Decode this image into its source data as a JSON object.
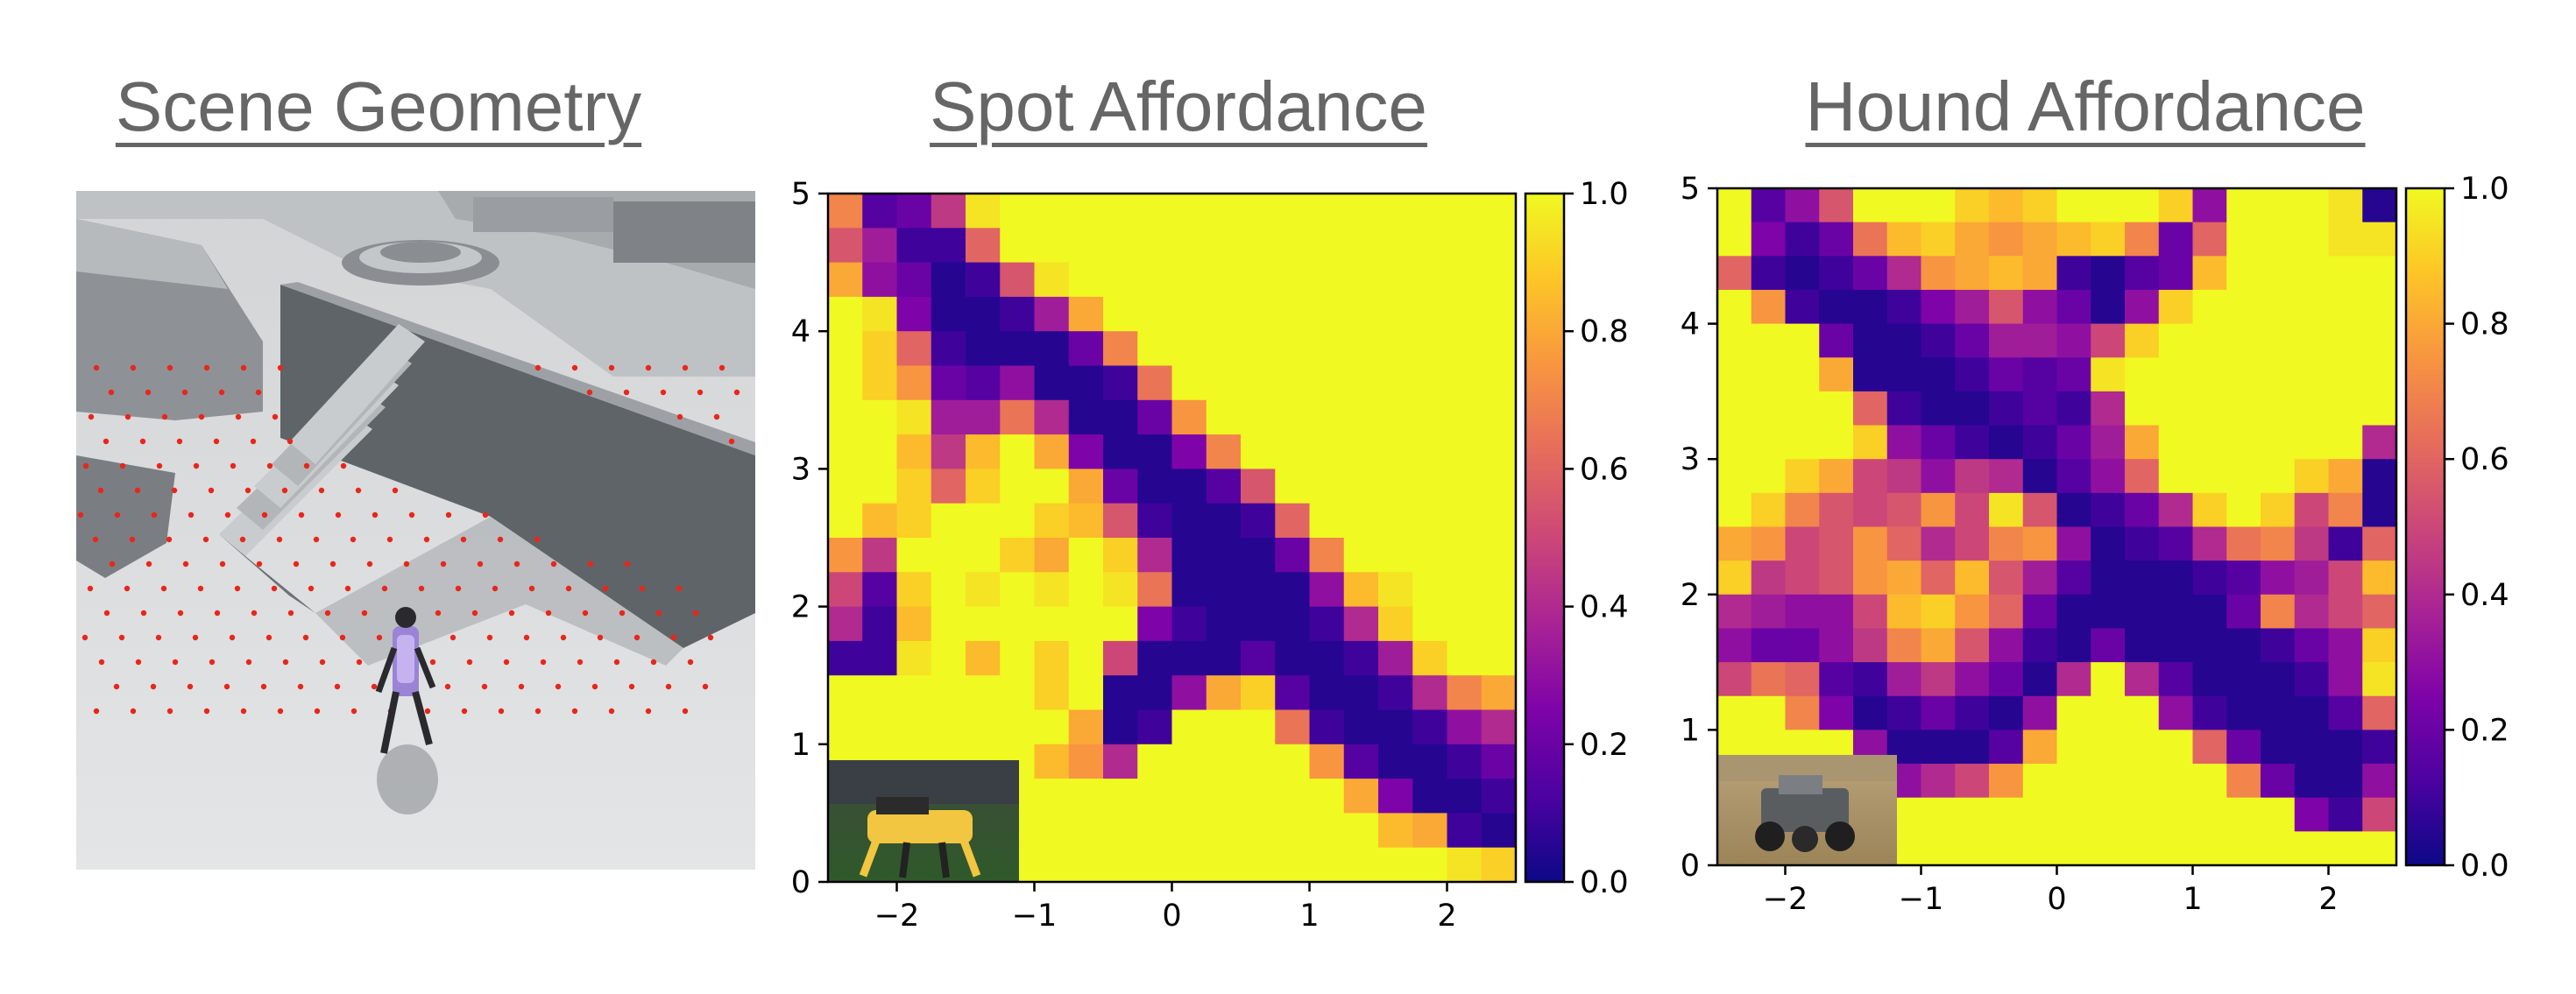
{
  "titles": [
    "Scene Geometry",
    "Spot Affordance",
    "Hound Affordance"
  ],
  "scene": {
    "picture": "3D terrain with stairs, walls, ramps and red sample points; quadruped robot at lower center",
    "robot_icon": "quadruped-robot-icon"
  },
  "colors": {
    "plasma_0": "#0d0887",
    "plasma_25": "#7e03a8",
    "plasma_50": "#cc4778",
    "plasma_75": "#f89540",
    "plasma_100": "#f0f921",
    "title": "#666666",
    "sample_point": "#e8261b"
  },
  "chart_data": [
    {
      "type": "heatmap",
      "title": "Spot Affordance",
      "xlim": [
        -2.5,
        2.5
      ],
      "ylim": [
        0,
        5
      ],
      "xticks": [
        -2,
        -1,
        0,
        1,
        2
      ],
      "yticks": [
        0,
        1,
        2,
        3,
        4,
        5
      ],
      "xtick_labels": [
        "−2",
        "−1",
        "0",
        "1",
        "2"
      ],
      "ytick_labels": [
        "0",
        "1",
        "2",
        "3",
        "4",
        "5"
      ],
      "colorbar": {
        "range": [
          0,
          1
        ],
        "ticks": [
          0,
          0.2,
          0.4,
          0.6,
          0.8,
          1
        ],
        "tick_labels": [
          "0.0",
          "0.2",
          "0.4",
          "0.6",
          "0.8",
          "1.0"
        ],
        "cmap": "plasma"
      },
      "grid": false,
      "inset": {
        "placement": "bottom-left",
        "content": "Spot robot photo"
      },
      "grid_size": [
        20,
        20
      ],
      "values_top_row_first": [
        [
          0.7,
          0.15,
          0.2,
          0.45,
          0.95,
          1,
          1,
          1,
          1,
          1,
          1,
          1,
          1,
          1,
          1,
          1,
          1,
          1,
          1,
          1
        ],
        [
          0.55,
          0.35,
          0.1,
          0.1,
          0.6,
          1,
          1,
          1,
          1,
          1,
          1,
          1,
          1,
          1,
          1,
          1,
          1,
          1,
          1,
          1
        ],
        [
          0.8,
          0.3,
          0.2,
          0.05,
          0.1,
          0.55,
          0.95,
          1,
          1,
          1,
          1,
          1,
          1,
          1,
          1,
          1,
          1,
          1,
          1,
          1
        ],
        [
          1,
          0.95,
          0.25,
          0.05,
          0.05,
          0.1,
          0.35,
          0.8,
          1,
          1,
          1,
          1,
          1,
          1,
          1,
          1,
          1,
          1,
          1,
          1
        ],
        [
          1,
          0.9,
          0.6,
          0.1,
          0.05,
          0.05,
          0.05,
          0.2,
          0.7,
          1,
          1,
          1,
          1,
          1,
          1,
          1,
          1,
          1,
          1,
          1
        ],
        [
          1,
          0.9,
          0.75,
          0.2,
          0.15,
          0.3,
          0.05,
          0.05,
          0.1,
          0.65,
          1,
          1,
          1,
          1,
          1,
          1,
          1,
          1,
          1,
          1
        ],
        [
          1,
          1,
          0.95,
          0.35,
          0.35,
          0.65,
          0.4,
          0.05,
          0.05,
          0.2,
          0.75,
          1,
          1,
          1,
          1,
          1,
          1,
          1,
          1,
          1
        ],
        [
          1,
          1,
          0.85,
          0.45,
          0.85,
          1,
          0.8,
          0.25,
          0.05,
          0.05,
          0.25,
          0.7,
          1,
          1,
          1,
          1,
          1,
          1,
          1,
          1
        ],
        [
          1,
          1,
          0.9,
          0.6,
          0.9,
          1,
          1,
          0.8,
          0.2,
          0.05,
          0.05,
          0.15,
          0.55,
          1,
          1,
          1,
          1,
          1,
          1,
          1
        ],
        [
          1,
          0.85,
          0.9,
          1,
          1,
          1,
          0.9,
          0.85,
          0.55,
          0.1,
          0.05,
          0.05,
          0.1,
          0.6,
          1,
          1,
          1,
          1,
          1,
          1
        ],
        [
          0.75,
          0.45,
          1,
          1,
          1,
          0.9,
          0.8,
          1,
          0.9,
          0.4,
          0.05,
          0.05,
          0.05,
          0.2,
          0.7,
          1,
          1,
          1,
          1,
          1
        ],
        [
          0.5,
          0.15,
          0.9,
          1,
          0.95,
          1,
          0.95,
          1,
          0.95,
          0.65,
          0.05,
          0.05,
          0.05,
          0.05,
          0.3,
          0.85,
          0.95,
          1,
          1,
          1
        ],
        [
          0.4,
          0.1,
          0.85,
          1,
          1,
          1,
          1,
          1,
          1,
          0.25,
          0.1,
          0.05,
          0.05,
          0.05,
          0.1,
          0.4,
          0.9,
          1,
          1,
          1
        ],
        [
          0.1,
          0.1,
          0.95,
          1,
          0.85,
          1,
          0.9,
          1,
          0.5,
          0.05,
          0.05,
          0.05,
          0.15,
          0.05,
          0.05,
          0.1,
          0.35,
          0.9,
          1,
          1
        ],
        [
          1,
          1,
          1,
          1,
          1,
          1,
          0.9,
          1,
          0.05,
          0.05,
          0.3,
          0.8,
          0.9,
          0.15,
          0.05,
          0.05,
          0.1,
          0.4,
          0.7,
          0.8
        ],
        [
          1,
          1,
          1,
          1,
          1,
          1,
          1,
          0.8,
          0.05,
          0.1,
          1,
          1,
          1,
          0.65,
          0.1,
          0.05,
          0.05,
          0.1,
          0.3,
          0.4
        ],
        [
          1,
          1,
          1,
          1,
          1,
          1,
          0.85,
          0.75,
          0.4,
          1,
          1,
          1,
          1,
          1,
          0.75,
          0.15,
          0.05,
          0.05,
          0.1,
          0.2
        ],
        [
          1,
          1,
          1,
          1,
          1,
          1,
          1,
          1,
          1,
          1,
          1,
          1,
          1,
          1,
          1,
          0.8,
          0.25,
          0.05,
          0.05,
          0.1
        ],
        [
          1,
          1,
          1,
          1,
          1,
          1,
          1,
          1,
          1,
          1,
          1,
          1,
          1,
          1,
          1,
          1,
          0.85,
          0.8,
          0.1,
          0.05
        ],
        [
          1,
          1,
          1,
          1,
          1,
          1,
          1,
          1,
          1,
          1,
          1,
          1,
          1,
          1,
          1,
          1,
          1,
          1,
          0.95,
          0.9
        ]
      ]
    },
    {
      "type": "heatmap",
      "title": "Hound Affordance",
      "xlim": [
        -2.5,
        2.5
      ],
      "ylim": [
        0,
        5
      ],
      "xticks": [
        -2,
        -1,
        0,
        1,
        2
      ],
      "yticks": [
        0,
        1,
        2,
        3,
        4,
        5
      ],
      "xtick_labels": [
        "−2",
        "−1",
        "0",
        "1",
        "2"
      ],
      "ytick_labels": [
        "0",
        "1",
        "2",
        "3",
        "4",
        "5"
      ],
      "colorbar": {
        "range": [
          0,
          1
        ],
        "ticks": [
          0,
          0.2,
          0.4,
          0.6,
          0.8,
          1
        ],
        "tick_labels": [
          "0.0",
          "0.2",
          "0.4",
          "0.6",
          "0.8",
          "1.0"
        ],
        "cmap": "plasma"
      },
      "grid": false,
      "inset": {
        "placement": "bottom-left",
        "content": "Hound robot photo"
      },
      "grid_size": [
        20,
        20
      ],
      "values_top_row_first": [
        [
          1,
          0.15,
          0.3,
          0.55,
          1,
          1,
          1,
          0.9,
          0.85,
          0.9,
          1,
          1,
          1,
          0.9,
          0.3,
          1,
          1,
          1,
          0.95,
          0.05
        ],
        [
          1,
          0.25,
          0.1,
          0.2,
          0.65,
          0.85,
          0.9,
          0.8,
          0.75,
          0.8,
          0.85,
          0.9,
          0.7,
          0.2,
          0.6,
          1,
          1,
          1,
          0.95,
          0.95
        ],
        [
          0.6,
          0.1,
          0.05,
          0.1,
          0.2,
          0.4,
          0.75,
          0.8,
          0.85,
          0.8,
          0.1,
          0.05,
          0.15,
          0.2,
          0.85,
          1,
          1,
          1,
          1,
          1
        ],
        [
          1,
          0.75,
          0.1,
          0.05,
          0.05,
          0.1,
          0.25,
          0.35,
          0.55,
          0.3,
          0.2,
          0.05,
          0.3,
          0.9,
          1,
          1,
          1,
          1,
          1,
          1
        ],
        [
          1,
          1,
          1,
          0.2,
          0.05,
          0.05,
          0.1,
          0.2,
          0.35,
          0.35,
          0.3,
          0.5,
          0.9,
          1,
          1,
          1,
          1,
          1,
          1,
          1
        ],
        [
          1,
          1,
          1,
          0.8,
          0.05,
          0.05,
          0.05,
          0.1,
          0.2,
          0.15,
          0.2,
          0.95,
          1,
          1,
          1,
          1,
          1,
          1,
          1,
          1
        ],
        [
          1,
          1,
          1,
          1,
          0.6,
          0.1,
          0.05,
          0.05,
          0.1,
          0.15,
          0.1,
          0.4,
          1,
          1,
          1,
          1,
          1,
          1,
          1,
          1
        ],
        [
          1,
          1,
          1,
          1,
          0.9,
          0.3,
          0.2,
          0.1,
          0.05,
          0.1,
          0.2,
          0.35,
          0.8,
          1,
          1,
          1,
          1,
          1,
          1,
          0.4
        ],
        [
          1,
          1,
          0.9,
          0.8,
          0.5,
          0.45,
          0.3,
          0.45,
          0.4,
          0.05,
          0.15,
          0.3,
          0.6,
          1,
          1,
          1,
          1,
          0.9,
          0.8,
          0.05
        ],
        [
          1,
          0.9,
          0.7,
          0.55,
          0.5,
          0.55,
          0.75,
          0.5,
          0.95,
          0.55,
          0.05,
          0.1,
          0.2,
          0.4,
          0.9,
          1,
          0.9,
          0.5,
          0.7,
          0.05
        ],
        [
          0.8,
          0.75,
          0.5,
          0.55,
          0.75,
          0.6,
          0.4,
          0.5,
          0.7,
          0.75,
          0.3,
          0.05,
          0.1,
          0.15,
          0.4,
          0.65,
          0.7,
          0.45,
          0.1,
          0.6
        ],
        [
          0.9,
          0.45,
          0.5,
          0.55,
          0.75,
          0.8,
          0.6,
          0.85,
          0.55,
          0.35,
          0.15,
          0.05,
          0.05,
          0.05,
          0.1,
          0.15,
          0.3,
          0.35,
          0.5,
          0.85
        ],
        [
          0.4,
          0.35,
          0.3,
          0.3,
          0.5,
          0.85,
          0.9,
          0.75,
          0.6,
          0.2,
          0.05,
          0.05,
          0.05,
          0.05,
          0.05,
          0.2,
          0.7,
          0.4,
          0.5,
          0.6
        ],
        [
          0.3,
          0.2,
          0.2,
          0.3,
          0.45,
          0.7,
          0.8,
          0.55,
          0.3,
          0.1,
          0.05,
          0.2,
          0.05,
          0.05,
          0.05,
          0.05,
          0.1,
          0.2,
          0.3,
          0.9
        ],
        [
          0.5,
          0.65,
          0.6,
          0.15,
          0.1,
          0.35,
          0.45,
          0.3,
          0.2,
          0.05,
          0.4,
          1,
          0.4,
          0.15,
          0.05,
          0.05,
          0.05,
          0.1,
          0.3,
          0.95
        ],
        [
          1,
          1,
          0.7,
          0.25,
          0.05,
          0.1,
          0.2,
          0.1,
          0.05,
          0.3,
          1,
          1,
          1,
          0.3,
          0.1,
          0.05,
          0.05,
          0.05,
          0.15,
          0.6
        ],
        [
          1,
          1,
          1,
          1,
          0.3,
          0.05,
          0.05,
          0.05,
          0.15,
          0.8,
          1,
          1,
          1,
          1,
          0.6,
          0.2,
          0.05,
          0.05,
          0.05,
          0.1
        ],
        [
          1,
          1,
          1,
          1,
          1,
          0.3,
          0.4,
          0.5,
          0.75,
          1,
          1,
          1,
          1,
          1,
          1,
          0.7,
          0.2,
          0.05,
          0.05,
          0.3
        ],
        [
          1,
          1,
          1,
          1,
          1,
          1,
          1,
          1,
          1,
          1,
          1,
          1,
          1,
          1,
          1,
          1,
          1,
          0.25,
          0.1,
          0.5
        ],
        [
          1,
          1,
          1,
          1,
          1,
          1,
          1,
          1,
          1,
          1,
          1,
          1,
          1,
          1,
          1,
          1,
          1,
          1,
          1,
          1
        ]
      ]
    }
  ]
}
